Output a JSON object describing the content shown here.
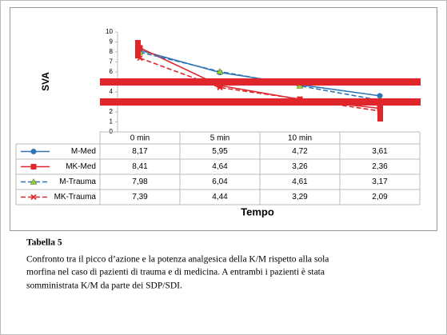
{
  "chart_data": {
    "type": "line",
    "y_label": "SVA",
    "x_label": "Tempo",
    "categories": [
      "0 min",
      "5 min",
      "10 min",
      null
    ],
    "ylim": [
      0,
      10
    ],
    "yticks": [
      0,
      1,
      2,
      3,
      4,
      5,
      6,
      7,
      8,
      9,
      10
    ],
    "series": [
      {
        "name": "M-Med",
        "color": "#2e75b6",
        "marker": "circle",
        "marker_color": "#2e75b6",
        "dashed": false,
        "values": [
          8.17,
          5.95,
          4.72,
          3.61
        ],
        "value_labels": [
          "8,17",
          "5,95",
          "4,72",
          "3,61"
        ]
      },
      {
        "name": "MK-Med",
        "color": "#e0262a",
        "marker": "square",
        "marker_color": "#e0262a",
        "dashed": false,
        "values": [
          8.41,
          4.64,
          3.26,
          2.36
        ],
        "value_labels": [
          "8,41",
          "4,64",
          "3,26",
          "2,36"
        ]
      },
      {
        "name": "M-Trauma",
        "color": "#2e75b6",
        "marker": "triangle",
        "marker_color": "#9acd32",
        "dashed": true,
        "values": [
          7.98,
          6.04,
          4.61,
          3.17
        ],
        "value_labels": [
          "7,98",
          "6,04",
          "4,61",
          "3,17"
        ]
      },
      {
        "name": "MK-Trauma",
        "color": "#e0262a",
        "marker": "x",
        "marker_color": "#e0262a",
        "dashed": true,
        "values": [
          7.39,
          4.44,
          3.29,
          2.09
        ],
        "value_labels": [
          "7,39",
          "4,44",
          "3,29",
          "2,09"
        ]
      }
    ]
  },
  "caption": {
    "title": "Tabella 5",
    "lines": [
      "Confronto tra il picco d’azione e la potenza analgesica della K/M rispetto alla sola",
      "morfina nel caso di pazienti di trauma e di medicina. A entrambi i pazienti è stata",
      "somministrata K/M da parte dei SDP/SDI."
    ]
  }
}
